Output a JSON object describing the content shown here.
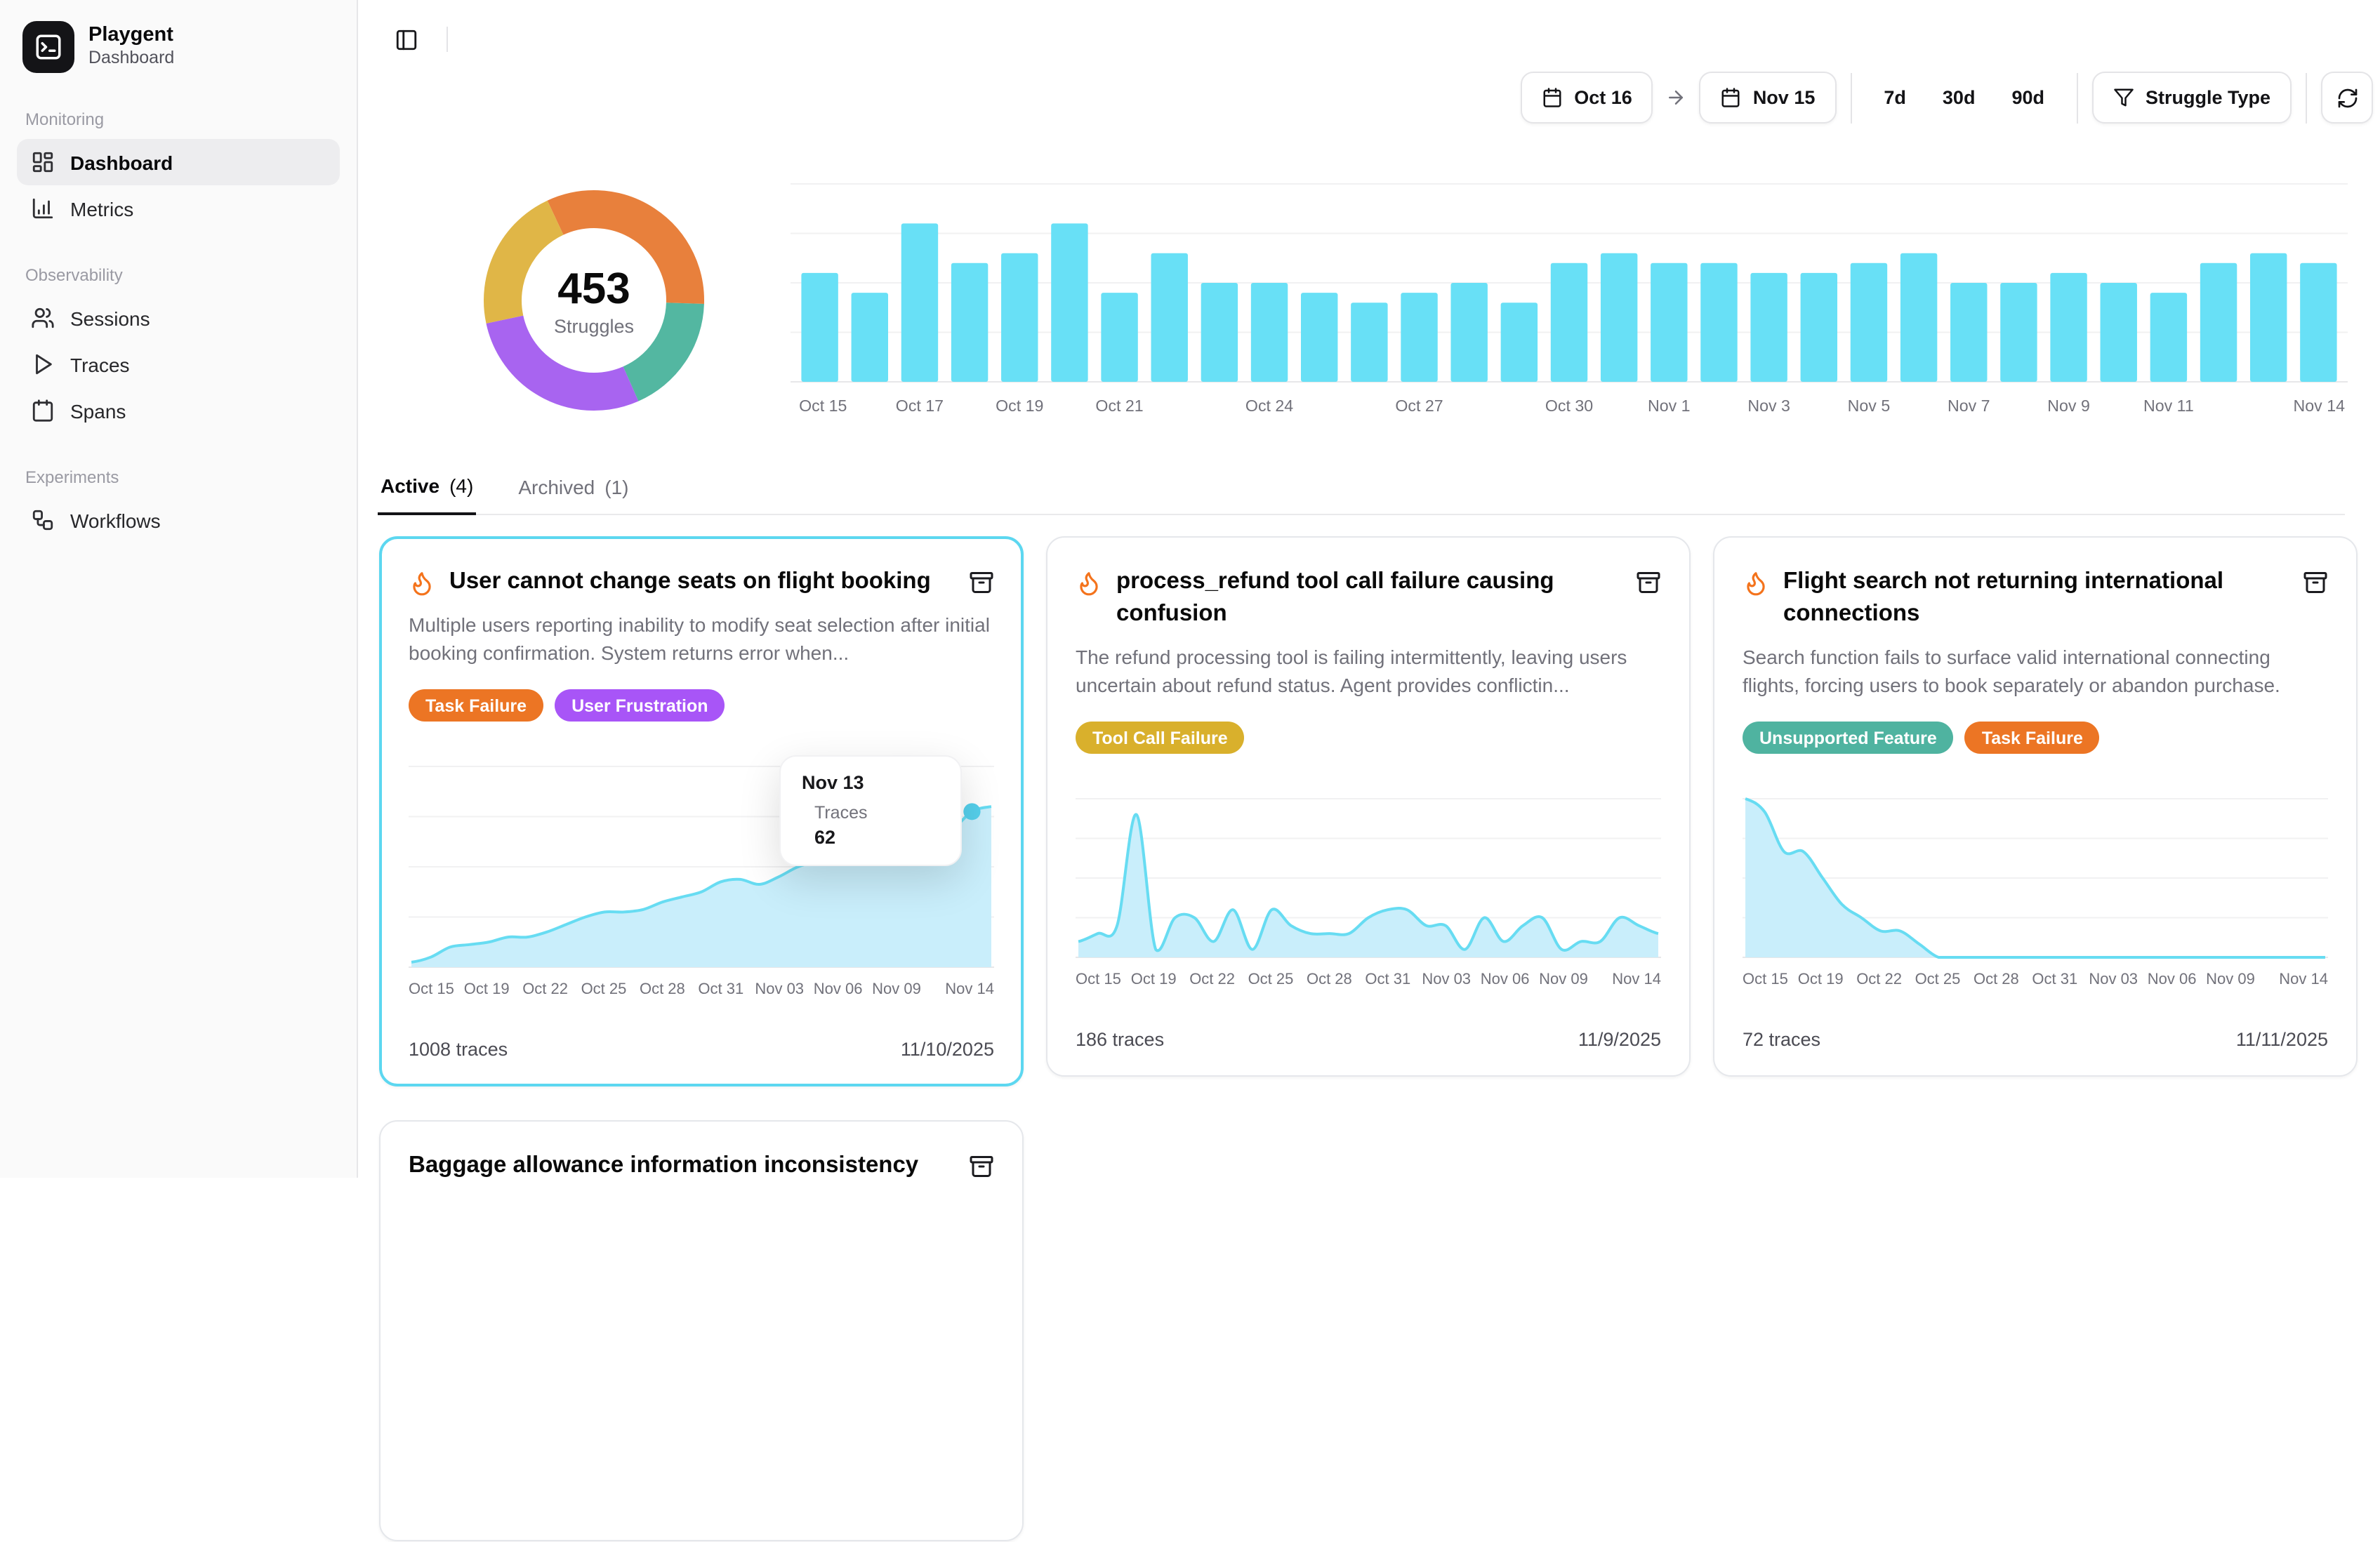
{
  "sidebar": {
    "logo": {
      "title": "Playgent",
      "subtitle": "Dashboard"
    },
    "sections": [
      {
        "label": "Monitoring",
        "items": [
          {
            "label": "Dashboard",
            "icon": "layout-dashboard-icon",
            "active": true
          },
          {
            "label": "Metrics",
            "icon": "bar-chart-icon",
            "active": false
          }
        ]
      },
      {
        "label": "Observability",
        "items": [
          {
            "label": "Sessions",
            "icon": "users-icon",
            "active": false
          },
          {
            "label": "Traces",
            "icon": "play-icon",
            "active": false
          },
          {
            "label": "Spans",
            "icon": "calendar-icon",
            "active": false
          }
        ]
      },
      {
        "label": "Experiments",
        "items": [
          {
            "label": "Workflows",
            "icon": "workflow-icon",
            "active": false
          }
        ]
      }
    ]
  },
  "toolbar": {
    "date_from": "Oct 16",
    "date_to": "Nov 15",
    "ranges": [
      "7d",
      "30d",
      "90d"
    ],
    "filter_label": "Struggle Type"
  },
  "summary": {
    "total": "453",
    "label": "Struggles"
  },
  "tabs": {
    "active": {
      "label": "Active",
      "count": "(4)"
    },
    "archived": {
      "label": "Archived",
      "count": "(1)"
    }
  },
  "tooltip": {
    "label": "Nov 13",
    "series": "Traces",
    "value": "62"
  },
  "cards": [
    {
      "title": "User cannot change seats on flight booking",
      "description": "Multiple users reporting inability to modify seat selection after initial booking confirmation. System returns error when...",
      "tags": [
        {
          "label": "Task Failure",
          "color": "#ec7524"
        },
        {
          "label": "User Frustration",
          "color": "#a855f7"
        }
      ],
      "traces": "1008 traces",
      "date": "11/10/2025",
      "selected": true
    },
    {
      "title": "process_refund tool call failure causing confusion",
      "description": "The refund processing tool is failing intermittently, leaving users uncertain about refund status. Agent provides conflictin...",
      "tags": [
        {
          "label": "Tool Call Failure",
          "color": "#d9b02c"
        }
      ],
      "traces": "186 traces",
      "date": "11/9/2025",
      "selected": false
    },
    {
      "title": "Flight search not returning international connections",
      "description": "Search function fails to surface valid international connecting flights, forcing users to book separately or abandon purchase.",
      "tags": [
        {
          "label": "Unsupported Feature",
          "color": "#4fb3a0"
        },
        {
          "label": "Task Failure",
          "color": "#ec7524"
        }
      ],
      "traces": "72 traces",
      "date": "11/11/2025",
      "selected": false
    },
    {
      "title": "Baggage allowance information inconsistency",
      "tags": [],
      "selected": false
    }
  ],
  "colors": {
    "accent_cyan": "#68e0f6",
    "area_fill": "#c9eefb",
    "area_line": "#67dcf2",
    "selected_border": "#5cd7f0",
    "flame_orange": "#f4731c",
    "tag_orange": "#ec7524",
    "tag_purple": "#a855f7",
    "tag_gold": "#d9b02c",
    "tag_teal": "#4fb3a0"
  },
  "chart_data": [
    {
      "id": "struggles-donut",
      "type": "pie",
      "title": "453 Struggles",
      "center_value": "453",
      "center_label": "Struggles",
      "start_angle_deg": -25,
      "inner_radius_ratio": 0.66,
      "segments": [
        {
          "label": "Task Failure",
          "value": 147,
          "color": "#e8803c"
        },
        {
          "label": "Unsupported Feature",
          "value": 81,
          "color": "#53b7a1"
        },
        {
          "label": "User Frustration",
          "value": 128,
          "color": "#a864f0"
        },
        {
          "label": "Tool Call Failure",
          "value": 97,
          "color": "#e0b647"
        }
      ]
    },
    {
      "id": "struggles-per-day",
      "type": "bar",
      "color": "#68e0f6",
      "grid": true,
      "ylim": [
        0,
        20
      ],
      "x": [
        "Oct 15",
        "Oct 16",
        "Oct 17",
        "Oct 18",
        "Oct 19",
        "Oct 20",
        "Oct 21",
        "Oct 22",
        "Oct 23",
        "Oct 24",
        "Oct 25",
        "Oct 26",
        "Oct 27",
        "Oct 28",
        "Oct 29",
        "Oct 30",
        "Oct 31",
        "Nov 1",
        "Nov 2",
        "Nov 3",
        "Nov 4",
        "Nov 5",
        "Nov 6",
        "Nov 7",
        "Nov 8",
        "Nov 9",
        "Nov 10",
        "Nov 11",
        "Nov 12",
        "Nov 13",
        "Nov 14"
      ],
      "values": [
        11,
        9,
        16,
        12,
        13,
        16,
        9,
        13,
        10,
        10,
        9,
        8,
        9,
        10,
        8,
        12,
        13,
        12,
        12,
        11,
        11,
        12,
        13,
        10,
        10,
        11,
        10,
        9,
        12,
        13,
        12
      ],
      "tick_labels": [
        "Oct 15",
        "Oct 17",
        "Oct 19",
        "Oct 21",
        "Oct 24",
        "Oct 27",
        "Oct 30",
        "Nov 1",
        "Nov 3",
        "Nov 5",
        "Nov 7",
        "Nov 9",
        "Nov 11",
        "Nov 14"
      ],
      "tick_indices": [
        0,
        2,
        4,
        6,
        9,
        12,
        15,
        17,
        19,
        21,
        23,
        25,
        27,
        30
      ]
    },
    {
      "id": "card-seats-trend",
      "type": "area",
      "x_ref": "struggles-per-day",
      "ylim": [
        0,
        80
      ],
      "values": [
        2,
        4,
        8,
        9,
        10,
        12,
        12,
        14,
        17,
        20,
        22,
        22,
        23,
        26,
        28,
        30,
        34,
        35,
        33,
        36,
        40,
        42,
        42,
        44,
        46,
        48,
        50,
        52,
        55,
        62,
        64
      ],
      "marker": {
        "index": 29,
        "label": "Nov 13",
        "series": "Traces",
        "value": 62
      },
      "tick_labels": [
        "Oct 15",
        "Oct 19",
        "Oct 22",
        "Oct 25",
        "Oct 28",
        "Oct 31",
        "Nov 03",
        "Nov 06",
        "Nov 09",
        "Nov 14"
      ],
      "tick_indices": [
        0,
        4,
        7,
        10,
        13,
        16,
        19,
        22,
        25,
        30
      ]
    },
    {
      "id": "card-refund-trend",
      "type": "area",
      "x_ref": "struggles-per-day",
      "ylim": [
        0,
        20
      ],
      "values": [
        2,
        3,
        4,
        18,
        1,
        5,
        5,
        2,
        6,
        1,
        6,
        4,
        3,
        3,
        3,
        5,
        6,
        6,
        4,
        4,
        1,
        5,
        2,
        4,
        5,
        1,
        2,
        2,
        5,
        4,
        3
      ],
      "tick_labels": [
        "Oct 15",
        "Oct 19",
        "Oct 22",
        "Oct 25",
        "Oct 28",
        "Oct 31",
        "Nov 03",
        "Nov 06",
        "Nov 09",
        "Nov 14"
      ],
      "tick_indices": [
        0,
        4,
        7,
        10,
        13,
        16,
        19,
        22,
        25,
        30
      ]
    },
    {
      "id": "card-flightsearch-trend",
      "type": "area",
      "x_ref": "struggles-per-day",
      "ylim": [
        0,
        12
      ],
      "values": [
        12,
        11,
        8,
        8,
        6,
        4,
        3,
        2,
        2,
        1,
        0,
        0,
        0,
        0,
        0,
        0,
        0,
        0,
        0,
        0,
        0,
        0,
        0,
        0,
        0,
        0,
        0,
        0,
        0,
        0,
        0
      ],
      "tick_labels": [
        "Oct 15",
        "Oct 19",
        "Oct 22",
        "Oct 25",
        "Oct 28",
        "Oct 31",
        "Nov 03",
        "Nov 06",
        "Nov 09",
        "Nov 14"
      ],
      "tick_indices": [
        0,
        4,
        7,
        10,
        13,
        16,
        19,
        22,
        25,
        30
      ]
    }
  ]
}
